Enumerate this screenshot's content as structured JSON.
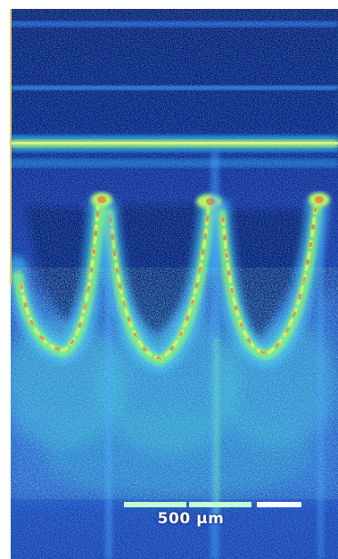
{
  "image": {
    "description_type": "oct-cross-section",
    "colormap": [
      "#0b1a6e",
      "#1533b8",
      "#2a6cff",
      "#3fd0ff",
      "#7dff7a",
      "#f5ff3a",
      "#ff7a1a",
      "#e81a12"
    ],
    "background_color": "#0c1c78",
    "frame_color": "#ffffff",
    "left_edge_color": "#d9c870"
  },
  "scale_bar": {
    "label": "500 µm",
    "bar_color_left": "#c8ffd0",
    "bar_color_right": "#ffffff"
  }
}
